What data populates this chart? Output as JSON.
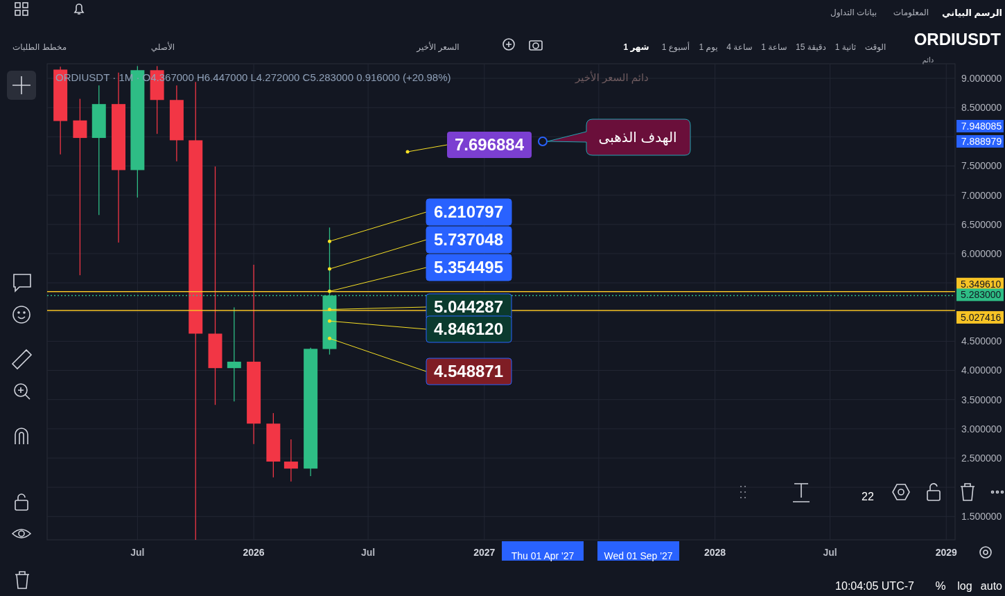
{
  "chart_data": {
    "type": "candlestick",
    "title": "ORDIUSDT",
    "subtitle": "ORDIUSDT · 1M · O4.367000 H6.447000 L4.272000 C5.283000 0.916000 (+20.98%)",
    "x": [
      "2025-03",
      "2025-04",
      "2025-05",
      "2025-06",
      "2025-07",
      "2025-08",
      "2025-09",
      "2025-10",
      "2025-11",
      "2025-12",
      "2026-01",
      "2026-02",
      "2026-03",
      "2026-04",
      "2026-05"
    ],
    "ohlc": [
      [
        9.15,
        9.2,
        7.7,
        8.27
      ],
      [
        8.28,
        8.65,
        5.63,
        7.98
      ],
      [
        7.98,
        8.88,
        6.66,
        8.56
      ],
      [
        8.56,
        9.1,
        6.19,
        7.43
      ],
      [
        7.43,
        9.21,
        6.96,
        9.14
      ],
      [
        9.14,
        9.21,
        8.05,
        8.63
      ],
      [
        8.63,
        8.88,
        7.58,
        7.94
      ],
      [
        7.94,
        8.94,
        1.1,
        4.63
      ],
      [
        4.63,
        7.49,
        3.41,
        4.04
      ],
      [
        4.04,
        5.08,
        3.47,
        4.15
      ],
      [
        4.15,
        5.81,
        2.74,
        3.09
      ],
      [
        3.09,
        3.27,
        2.17,
        2.44
      ],
      [
        2.44,
        2.82,
        2.1,
        2.32
      ],
      [
        2.32,
        4.39,
        2.19,
        4.37
      ],
      [
        4.367,
        6.447,
        4.272,
        5.283
      ]
    ],
    "colors": [
      "#f23645",
      "#f23645",
      "#2ebd85",
      "#f23645",
      "#2ebd85",
      "#f23645",
      "#f23645",
      "#f23645",
      "#f23645",
      "#2ebd85",
      "#f23645",
      "#f23645",
      "#f23645",
      "#2ebd85",
      "#2ebd85"
    ],
    "xlim": [
      "2025-02-08",
      "2029-01-15"
    ],
    "xticks": [
      {
        "value": "2025-07",
        "label": "Jul"
      },
      {
        "value": "2026-01",
        "label": "2026"
      },
      {
        "value": "2026-07",
        "label": "Jul"
      },
      {
        "value": "2027-01",
        "label": "2027"
      },
      {
        "value": "2027-07",
        "label": null
      },
      {
        "value": "2028-01",
        "label": "2028"
      },
      {
        "value": "2028-07",
        "label": "Jul"
      },
      {
        "value": "2029-01",
        "label": "2029"
      }
    ],
    "ylim": [
      1.1,
      9.25
    ],
    "yticks": [
      {
        "value": 1.5,
        "label": "1.500000"
      },
      {
        "value": 2,
        "label": null
      },
      {
        "value": 2.5,
        "label": "2.500000"
      },
      {
        "value": 3,
        "label": "3.000000"
      },
      {
        "value": 3.5,
        "label": "3.500000"
      },
      {
        "value": 4,
        "label": "4.000000"
      },
      {
        "value": 4.5,
        "label": "4.500000"
      },
      {
        "value": 5,
        "label": null
      },
      {
        "value": 5.5,
        "label": null
      },
      {
        "value": 6,
        "label": "6.000000"
      },
      {
        "value": 6.5,
        "label": "6.500000"
      },
      {
        "value": 7,
        "label": "7.000000"
      },
      {
        "value": 7.5,
        "label": "7.500000"
      },
      {
        "value": 8,
        "label": null
      },
      {
        "value": 8.5,
        "label": "8.500000"
      },
      {
        "value": 9,
        "label": "9.000000"
      }
    ],
    "grid": true,
    "ref_lines": [
      {
        "axis": "y",
        "value": 5.34961,
        "label": "5.349610",
        "color": "#f7c325",
        "line_style": "solid"
      },
      {
        "axis": "y",
        "value": 5.283,
        "label": "5.283000",
        "color": "#2ebd85",
        "line_style": "dotted"
      },
      {
        "axis": "y",
        "value": 5.027416,
        "label": "5.027416",
        "color": "#f7c325",
        "line_style": "solid"
      }
    ],
    "annotations": [
      "7.696884",
      {
        "text": "6.210797",
        "x": "2026-05",
        "y": 6.210797
      },
      {
        "text": "5.737048",
        "x": "2026-05",
        "y": 5.737048
      },
      {
        "text": "5.354495",
        "x": "2026-05",
        "y": 5.354495
      },
      {
        "text": "5.044287",
        "x": "2026-05",
        "y": 5.044287
      },
      {
        "text": "4.846120",
        "x": "2026-05",
        "y": 4.84612
      },
      {
        "text": "4.548871",
        "x": "2026-05",
        "y": 4.548871
      },
      "7.948085",
      "7.888979",
      "الهدف الذهبى",
      "الرسم البياني",
      "بيانات التداول",
      "المعلومات",
      "مخطط الطلبات",
      "الأصلي",
      "السعر الأخير",
      "1 شهر",
      "1 أسبوع",
      "1 يوم",
      "4 ساعة",
      "1 ساعة",
      "15 دقيقة",
      "1 ثانية",
      "الوقت",
      "دائم",
      "10:04:05 UTC-7",
      "%",
      "log",
      "auto",
      "22",
      "Thu 01 Apr '27",
      "Wed 01 Sep '27",
      "دائم السعر الأخير"
    ]
  }
}
